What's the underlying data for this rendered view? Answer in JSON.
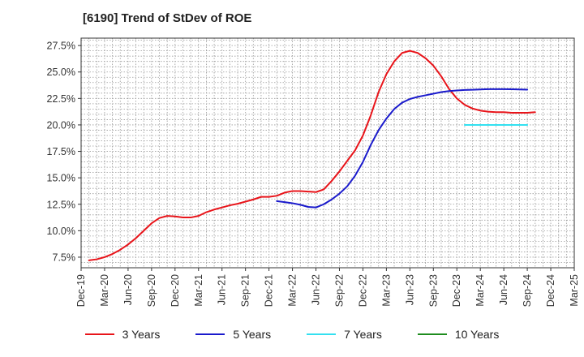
{
  "title": "[6190]  Trend of StDev of ROE",
  "chart_data": {
    "type": "line",
    "title": "[6190]  Trend of StDev of ROE",
    "xlabel": "",
    "ylabel": "",
    "ylim": [
      6.5,
      28.2
    ],
    "yticks": [
      7.5,
      10.0,
      12.5,
      15.0,
      17.5,
      20.0,
      22.5,
      25.0,
      27.5
    ],
    "ytick_labels": [
      "7.5%",
      "10.0%",
      "12.5%",
      "15.0%",
      "17.5%",
      "20.0%",
      "22.5%",
      "25.0%",
      "27.5%"
    ],
    "xtick_labels": [
      "Dec-19",
      "Mar-20",
      "Jun-20",
      "Sep-20",
      "Dec-20",
      "Mar-21",
      "Jun-21",
      "Sep-21",
      "Dec-21",
      "Mar-22",
      "Jun-22",
      "Sep-22",
      "Dec-22",
      "Mar-23",
      "Jun-23",
      "Sep-23",
      "Dec-23",
      "Mar-24",
      "Jun-24",
      "Sep-24",
      "Dec-24",
      "Mar-25"
    ],
    "grid": true,
    "legend_position": "bottom",
    "series": [
      {
        "name": "3 Years",
        "color": "#e8141a",
        "start_index": 1,
        "values": [
          7.2,
          7.3,
          7.5,
          7.8,
          8.2,
          8.7,
          9.3,
          10.0,
          10.7,
          11.2,
          11.4,
          11.35,
          11.25,
          11.25,
          11.4,
          11.75,
          12.0,
          12.2,
          12.4,
          12.55,
          12.75,
          12.95,
          13.2,
          13.2,
          13.3,
          13.6,
          13.75,
          13.75,
          13.7,
          13.65,
          13.9,
          14.7,
          15.6,
          16.6,
          17.6,
          19.0,
          20.9,
          23.1,
          24.8,
          26.0,
          26.8,
          27.0,
          26.8,
          26.3,
          25.6,
          24.6,
          23.4,
          22.5,
          21.9,
          21.55,
          21.35,
          21.25,
          21.2,
          21.2,
          21.15,
          21.15,
          21.15,
          21.2
        ]
      },
      {
        "name": "5 Years",
        "color": "#1a1acc",
        "start_index": 25,
        "values": [
          12.8,
          12.7,
          12.6,
          12.45,
          12.25,
          12.2,
          12.5,
          12.95,
          13.5,
          14.2,
          15.2,
          16.5,
          18.1,
          19.5,
          20.6,
          21.5,
          22.1,
          22.45,
          22.65,
          22.8,
          22.95,
          23.1,
          23.2,
          23.25,
          23.3,
          23.32,
          23.35,
          23.38,
          23.38,
          23.38,
          23.37,
          23.35,
          23.33
        ]
      },
      {
        "name": "7 Years",
        "color": "#33e0f0",
        "start_index": 49,
        "values": [
          20.0,
          20.0,
          20.0,
          20.0,
          20.0,
          20.0,
          20.0,
          20.0,
          20.0
        ]
      },
      {
        "name": "10 Years",
        "color": "#1e8c1e",
        "start_index": 0,
        "values": []
      }
    ]
  }
}
